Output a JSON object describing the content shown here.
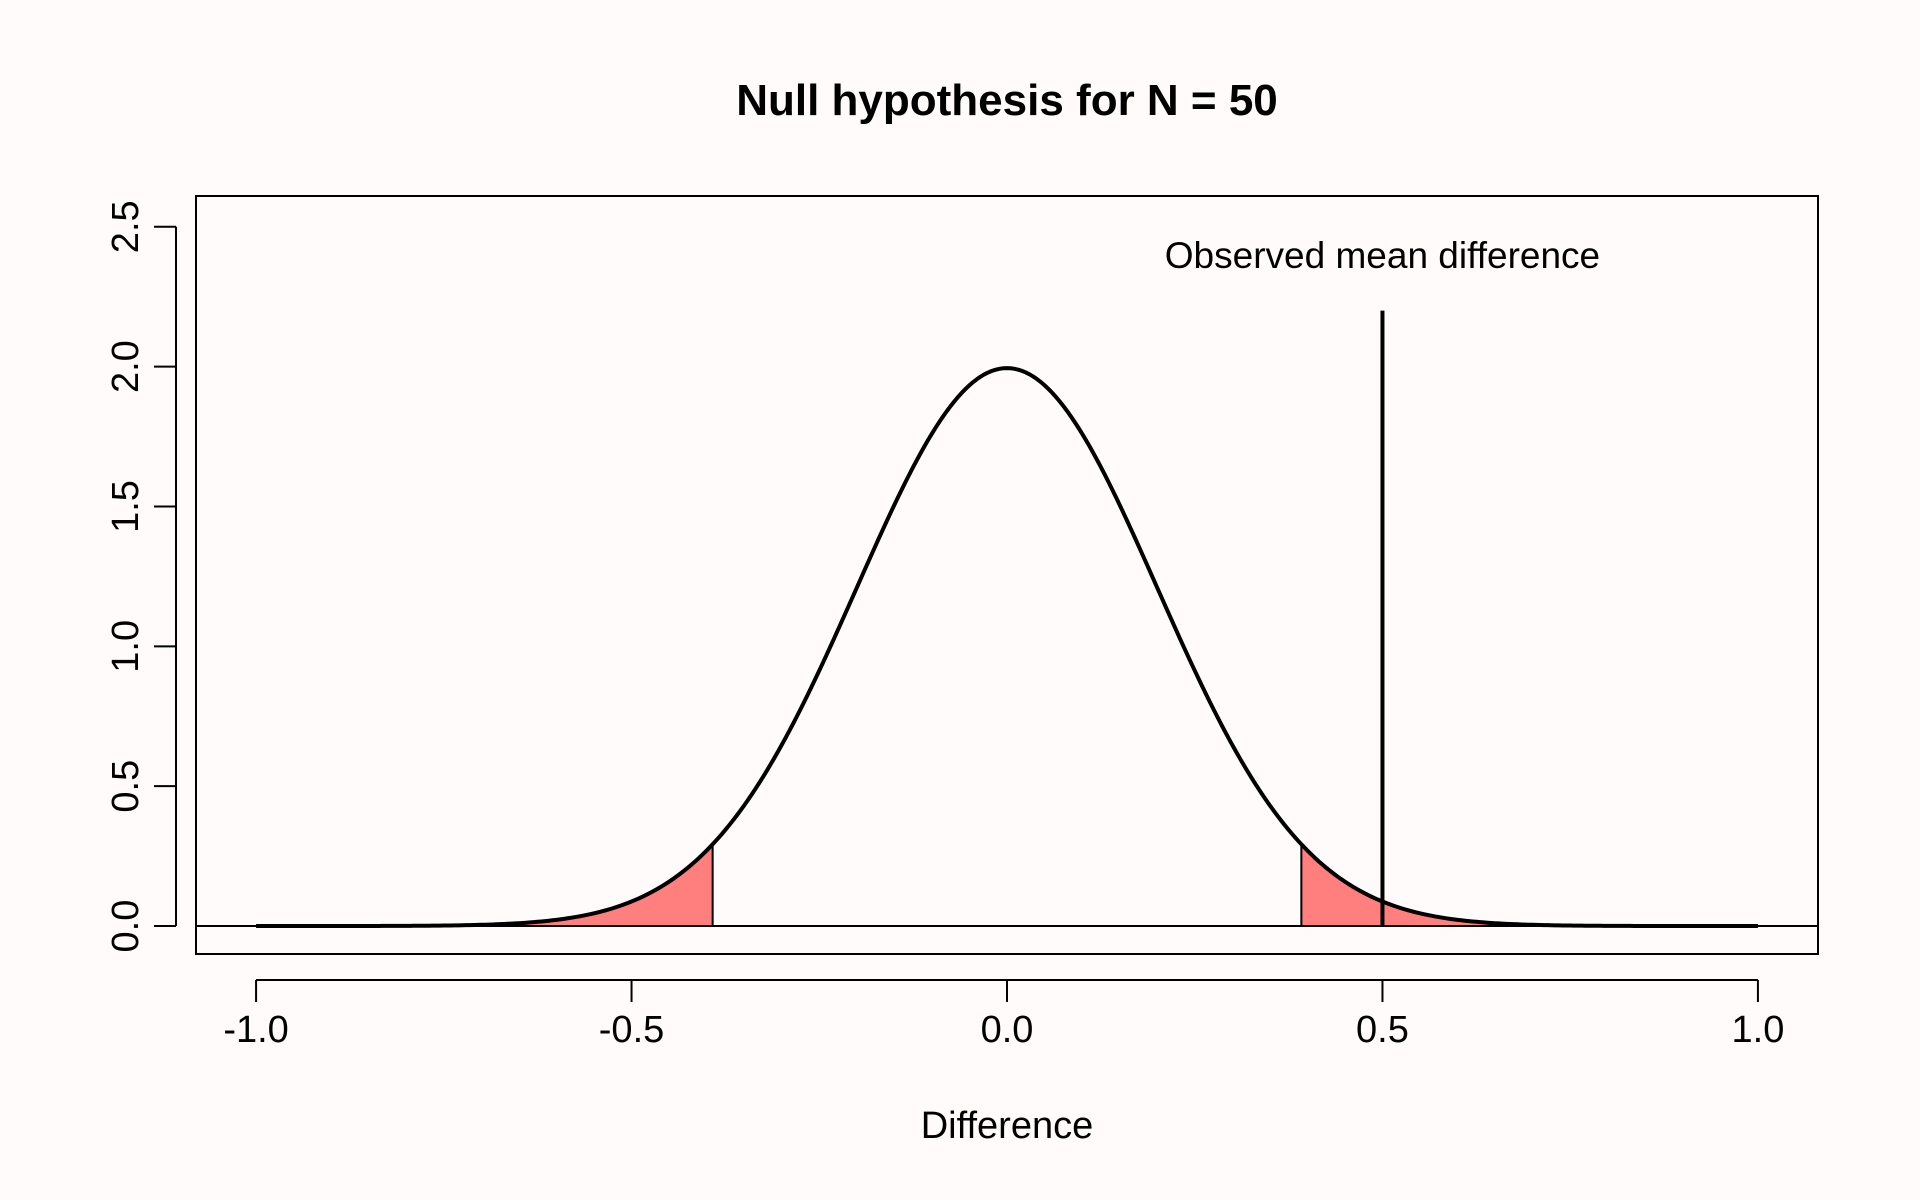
{
  "chart_data": {
    "type": "line",
    "title": "Null hypothesis for N =  50",
    "xlabel": "Difference",
    "ylabel": "",
    "xlim": [
      -1.08,
      1.08
    ],
    "ylim": [
      -0.1,
      2.61
    ],
    "x_ticks": [
      -1.0,
      -0.5,
      0.0,
      0.5,
      1.0
    ],
    "x_tick_labels": [
      "-1.0",
      "-0.5",
      "0.0",
      "0.5",
      "1.0"
    ],
    "y_ticks": [
      0.0,
      0.5,
      1.0,
      1.5,
      2.0,
      2.5
    ],
    "y_tick_labels": [
      "0.0",
      "0.5",
      "1.0",
      "1.5",
      "2.0",
      "2.5"
    ],
    "grid": false,
    "series": [
      {
        "name": "Null distribution density",
        "distribution": "normal",
        "mean": 0.0,
        "sd": 0.2,
        "x_range": [
          -1.0,
          1.0
        ],
        "color": "#000000"
      }
    ],
    "shaded_regions": [
      {
        "name": "lower rejection region",
        "from": -1.0,
        "to": -0.392,
        "color": "#ff7f7f"
      },
      {
        "name": "upper rejection region",
        "from": 0.392,
        "to": 1.0,
        "color": "#ff7f7f"
      }
    ],
    "reference_lines": [
      {
        "name": "baseline",
        "orientation": "horizontal",
        "y": 0.0
      }
    ],
    "markers": [
      {
        "name": "observed-mean-difference",
        "x": 0.5,
        "y_top": 2.2,
        "label": "Observed mean difference"
      }
    ]
  }
}
